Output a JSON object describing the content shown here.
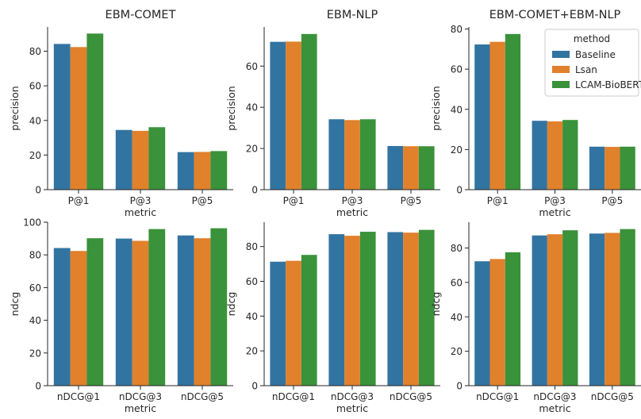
{
  "colors": {
    "Baseline": "#3274a1",
    "Lsan": "#e1812c",
    "LCAM-BioBERT": "#3a923a"
  },
  "legend": {
    "title": "method",
    "items": [
      "Baseline",
      "Lsan",
      "LCAM-BioBERT"
    ]
  },
  "chart_data": [
    {
      "type": "bar",
      "title": "EBM-COMET",
      "xlabel": "metric",
      "ylabel": "precision",
      "categories": [
        "P@1",
        "P@3",
        "P@5"
      ],
      "ylim": [
        0,
        94
      ],
      "yticks": [
        0,
        20,
        40,
        60,
        80
      ],
      "series": [
        {
          "name": "Baseline",
          "values": [
            84.2,
            34.5,
            21.7
          ]
        },
        {
          "name": "Lsan",
          "values": [
            82.4,
            34.0,
            21.8
          ]
        },
        {
          "name": "LCAM-BioBERT",
          "values": [
            90.2,
            36.1,
            22.3
          ]
        }
      ]
    },
    {
      "type": "bar",
      "title": "EBM-NLP",
      "xlabel": "metric",
      "ylabel": "precision",
      "categories": [
        "P@1",
        "P@3",
        "P@5"
      ],
      "ylim": [
        0,
        79
      ],
      "yticks": [
        0,
        20,
        40,
        60
      ],
      "series": [
        {
          "name": "Baseline",
          "values": [
            71.8,
            34.2,
            21.2
          ]
        },
        {
          "name": "Lsan",
          "values": [
            71.9,
            33.8,
            21.1
          ]
        },
        {
          "name": "LCAM-BioBERT",
          "values": [
            75.6,
            34.2,
            21.1
          ]
        }
      ]
    },
    {
      "type": "bar",
      "title": "EBM-COMET+EBM-NLP",
      "xlabel": "metric",
      "ylabel": "precision",
      "categories": [
        "P@1",
        "P@3",
        "P@5"
      ],
      "ylim": [
        0,
        81
      ],
      "yticks": [
        0,
        20,
        40,
        60,
        80
      ],
      "legend": "top-right",
      "series": [
        {
          "name": "Baseline",
          "values": [
            72.3,
            34.3,
            21.4
          ]
        },
        {
          "name": "Lsan",
          "values": [
            73.6,
            34.0,
            21.3
          ]
        },
        {
          "name": "LCAM-BioBERT",
          "values": [
            77.5,
            34.7,
            21.4
          ]
        }
      ]
    },
    {
      "type": "bar",
      "title": "",
      "xlabel": "metric",
      "ylabel": "ndcg",
      "categories": [
        "nDCG@1",
        "nDCG@3",
        "nDCG@5"
      ],
      "ylim": [
        0,
        100
      ],
      "yticks": [
        0,
        20,
        40,
        60,
        80,
        100
      ],
      "series": [
        {
          "name": "Baseline",
          "values": [
            84.2,
            90.0,
            91.9
          ]
        },
        {
          "name": "Lsan",
          "values": [
            82.4,
            88.6,
            90.2
          ]
        },
        {
          "name": "LCAM-BioBERT",
          "values": [
            90.2,
            95.8,
            96.3
          ]
        }
      ]
    },
    {
      "type": "bar",
      "title": "",
      "xlabel": "metric",
      "ylabel": "ndcg",
      "categories": [
        "nDCG@1",
        "nDCG@3",
        "nDCG@5"
      ],
      "ylim": [
        0,
        94
      ],
      "yticks": [
        0,
        20,
        40,
        60,
        80
      ],
      "series": [
        {
          "name": "Baseline",
          "values": [
            71.3,
            87.1,
            88.3
          ]
        },
        {
          "name": "Lsan",
          "values": [
            71.8,
            86.2,
            88.0
          ]
        },
        {
          "name": "LCAM-BioBERT",
          "values": [
            75.2,
            88.5,
            89.6
          ]
        }
      ]
    },
    {
      "type": "bar",
      "title": "",
      "xlabel": "metric",
      "ylabel": "ndcg",
      "categories": [
        "nDCG@1",
        "nDCG@3",
        "nDCG@5"
      ],
      "ylim": [
        0,
        95
      ],
      "yticks": [
        0,
        20,
        40,
        60,
        80
      ],
      "series": [
        {
          "name": "Baseline",
          "values": [
            72.3,
            87.3,
            88.4
          ]
        },
        {
          "name": "Lsan",
          "values": [
            73.6,
            88.0,
            88.8
          ]
        },
        {
          "name": "LCAM-BioBERT",
          "values": [
            77.5,
            90.3,
            91.0
          ]
        }
      ]
    }
  ]
}
